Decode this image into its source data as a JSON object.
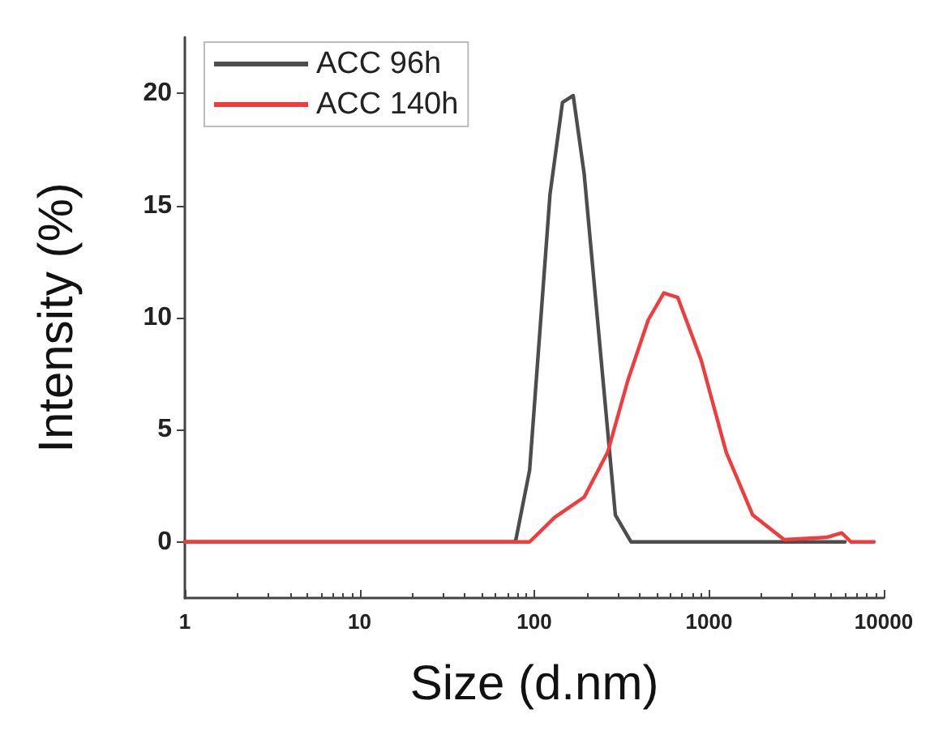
{
  "chart_data": {
    "type": "line",
    "xlabel": "Size (d.nm)",
    "ylabel": "Intensity (%)",
    "log": "x",
    "xlim": [
      1,
      10000
    ],
    "xticks": [
      1,
      10,
      100,
      1000,
      10000
    ],
    "ylim": [
      -2.5,
      22.5
    ],
    "yticks": [
      0,
      5,
      10,
      15,
      20
    ],
    "grid": false,
    "legend": "top left",
    "marker": "none",
    "line_style": "solid",
    "series": [
      {
        "name": "ACC 96h",
        "color": "#4d4d4d",
        "x": [
          1,
          78,
          94,
          123,
          145,
          167,
          193,
          291,
          358,
          1000,
          6000
        ],
        "values": [
          0,
          0,
          3.2,
          15.5,
          19.6,
          19.9,
          16.4,
          1.2,
          0,
          0,
          0
        ]
      },
      {
        "name": "ACC 140h",
        "color": "#f03c3c",
        "x": [
          1,
          94,
          131,
          193,
          263,
          343,
          449,
          551,
          662,
          902,
          1254,
          1778,
          2690,
          4680,
          5750,
          6500,
          8800
        ],
        "values": [
          0,
          0,
          1.1,
          2.0,
          4.0,
          7.2,
          9.9,
          11.1,
          10.9,
          8.1,
          4.0,
          1.2,
          0.1,
          0.2,
          0.4,
          0,
          0
        ]
      }
    ]
  }
}
